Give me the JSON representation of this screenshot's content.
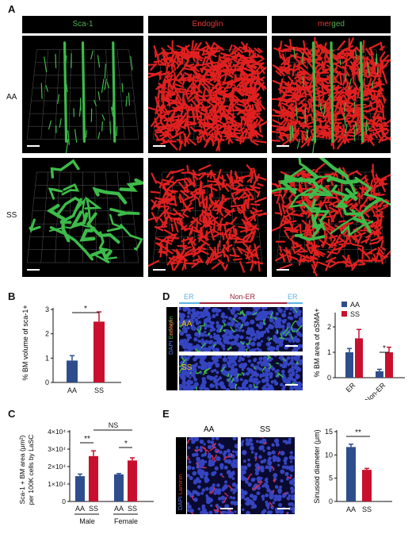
{
  "panels": {
    "A": {
      "letter": "A",
      "columns": [
        {
          "label": "Sca-1",
          "color": "#4caf50"
        },
        {
          "label": "Endoglin",
          "color": "#e53935"
        },
        {
          "label": "merged",
          "color_parts": [
            "#e53935",
            "#4caf50"
          ],
          "text_parts": [
            "mer",
            "ged"
          ]
        }
      ],
      "rows": [
        "AA",
        "SS"
      ]
    },
    "B": {
      "letter": "B"
    },
    "C": {
      "letter": "C"
    },
    "D": {
      "letter": "D",
      "region_labels": {
        "er_left": "ER",
        "non_er": "Non-ER",
        "er_right": "ER"
      },
      "row_labels": {
        "aa": "AA",
        "ss": "SS"
      },
      "stain_labels": {
        "asma": "αSMA",
        "endoglin": "Endoglin",
        "dapi": "DAPI"
      }
    },
    "E": {
      "letter": "E",
      "column_labels": [
        "AA",
        "SS"
      ],
      "stain_labels": {
        "dapi": "DAPI",
        "laminin": "Laminin"
      }
    }
  },
  "colors": {
    "AA": "#2e4d8c",
    "SS": "#c8102e",
    "black": "#000000"
  },
  "chart_data": [
    {
      "id": "B",
      "type": "bar",
      "categories": [
        "AA",
        "SS"
      ],
      "values": [
        0.9,
        2.5
      ],
      "errors": [
        0.2,
        0.4
      ],
      "ylabel": "% BM volume of sca-1+",
      "ylim": [
        0,
        3
      ],
      "yticks": [
        "0",
        "1",
        "2",
        "3"
      ],
      "significance": [
        {
          "pair": [
            "AA",
            "SS"
          ],
          "label": "*"
        }
      ]
    },
    {
      "id": "C",
      "type": "bar",
      "groups": [
        "Male",
        "Female"
      ],
      "categories": [
        "AA",
        "SS",
        "AA",
        "SS"
      ],
      "values": [
        14500,
        26000,
        15500,
        23500
      ],
      "errors": [
        1200,
        3000,
        500,
        1500
      ],
      "ylabel_lines": [
        "Sca-1 + BM area (μm²)",
        "per 100K cells by LaSC"
      ],
      "ylim": [
        0,
        40000
      ],
      "yticks": [
        "0",
        "1×10⁴",
        "2×10⁴",
        "3×10⁴",
        "4×10⁴"
      ],
      "significance": [
        {
          "pair": [
            "Male AA",
            "Male SS"
          ],
          "label": "**"
        },
        {
          "pair": [
            "Male SS",
            "Female SS"
          ],
          "label": "NS"
        },
        {
          "pair": [
            "Female AA",
            "Female SS"
          ],
          "label": "*"
        }
      ]
    },
    {
      "id": "D",
      "type": "bar",
      "categories": [
        "ER",
        "Non-ER"
      ],
      "series": [
        {
          "name": "AA",
          "values": [
            1.0,
            0.25
          ],
          "errors": [
            0.15,
            0.08
          ]
        },
        {
          "name": "SS",
          "values": [
            1.55,
            1.0
          ],
          "errors": [
            0.35,
            0.2
          ]
        }
      ],
      "ylabel": "% BM area of αSMA+",
      "ylim": [
        0,
        2.5
      ],
      "yticks": [
        "0",
        "1",
        "2"
      ],
      "legend": "top",
      "significance": [
        {
          "pair": [
            "Non-ER AA",
            "Non-ER SS"
          ],
          "label": "*"
        }
      ]
    },
    {
      "id": "E",
      "type": "bar",
      "categories": [
        "AA",
        "SS"
      ],
      "values": [
        11.7,
        6.8
      ],
      "errors": [
        0.6,
        0.3
      ],
      "ylabel": "Sinusoid diameter (μm)",
      "ylim": [
        0,
        15
      ],
      "yticks": [
        "0",
        "5",
        "10",
        "15"
      ],
      "significance": [
        {
          "pair": [
            "AA",
            "SS"
          ],
          "label": "**"
        }
      ]
    }
  ]
}
